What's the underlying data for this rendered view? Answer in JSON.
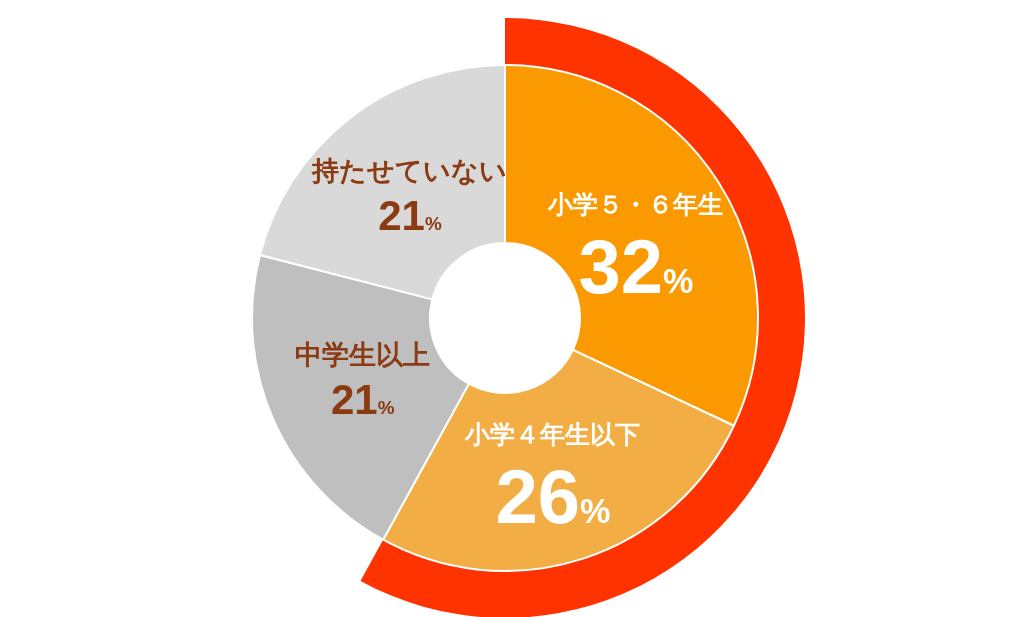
{
  "chart_data": {
    "type": "donut",
    "categories": [
      "小学５・６年生",
      "小学４年生以下",
      "中学生以上",
      "持たせていない"
    ],
    "values": [
      32,
      26,
      21,
      21
    ],
    "colors": [
      "#fa9a00",
      "#f2ae45",
      "#bfbfbf",
      "#d9d9d9"
    ],
    "value_labels": [
      "32%",
      "26%",
      "21%",
      "21%"
    ],
    "data_labels": true
  }
}
